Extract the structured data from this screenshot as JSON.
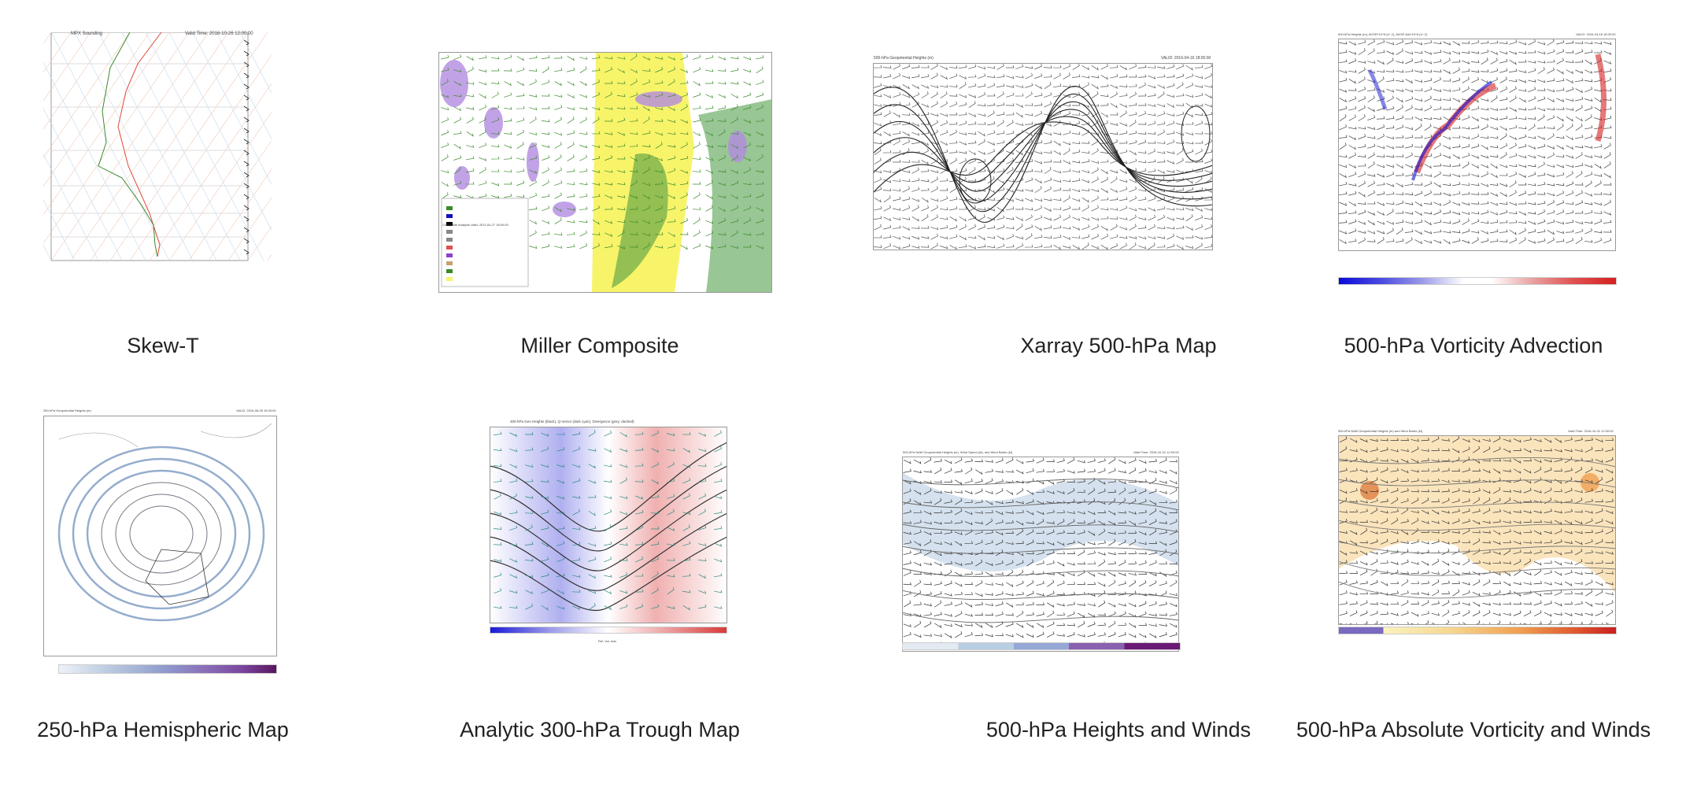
{
  "gallery": {
    "items": [
      {
        "caption": "Skew-T",
        "plot_title": "MPX Sounding",
        "plot_time": "Valid Time: 2016-10-26 12:00:00"
      },
      {
        "caption": "Miller Composite",
        "plot_title": "Composite Analysis Valid: 2011-04-27 18:00:00"
      },
      {
        "caption": "Xarray 500-hPa Map",
        "plot_title": "500-hPa Geopotential Heights (m)",
        "plot_time": "VALID: 2016-04-16 18:00:00"
      },
      {
        "caption": "500-hPa Vorticity Advection",
        "plot_title": "500-hPa Heights (m), AVOR*10^5 (s^-1), AVOR Adv*10^8 (s^-2)",
        "plot_time": "VALID: 2016-04-16 18:00:00"
      },
      {
        "caption": "250-hPa Hemispheric Map",
        "plot_title": "250-hPa Geopotential Heights (m)",
        "plot_time": "VALID: 2016-06-05 15:00:00"
      },
      {
        "caption": "Analytic 300-hPa Trough Map",
        "plot_title": "300-hPa Geo Heights (black), Q-Vector (dark cyan), Divergence (grey; dashed)",
        "colorbar_label": "Rel. Vor. Adv."
      },
      {
        "caption": "500-hPa Heights and Winds",
        "plot_title": "500-hPa NAM Geopotential Heights (m), Wind Speed (kt), and Wind Barbs (kt)",
        "plot_time": "Valid Time: 2016-10-31 12:00:00"
      },
      {
        "caption": "500-hPa Absolute Vorticity and Winds",
        "plot_title": "500-hPa NAM Geopotential Heights (m) and Wind Barbs (kt)",
        "plot_time": "Valid Time: 2016-10-31 12:00:00"
      }
    ]
  },
  "colors": {
    "skewt_temp": "#e0483c",
    "skewt_dew": "#3a8a2a",
    "miller_yellow": "#f7f46a",
    "miller_purple": "#b38be0",
    "miller_green": "#7fb87a",
    "div_blue": "#1010d0",
    "div_red": "#d42020",
    "speed_blue": "#b9cde3",
    "vort_orange": "#f5c46a"
  }
}
